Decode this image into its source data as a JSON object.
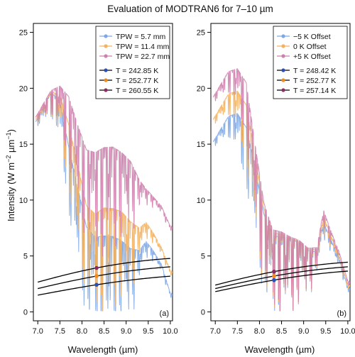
{
  "title": "Evaluation of MODTRAN6 for 7–10 µm",
  "xlabel": "Wavelength (µm)",
  "ylabel_base": "Intensity (W m",
  "ylabel_sup1": "−2",
  "ylabel_mid": " µm",
  "ylabel_sup2": "−1",
  "ylabel_end": ")",
  "chart_data": [
    {
      "type": "line",
      "panel_label": "(a)",
      "xlim": [
        6.9,
        10.05
      ],
      "ylim": [
        -0.8,
        25.8
      ],
      "xticks": [
        "7.0",
        "7.5",
        "8.0",
        "8.5",
        "9.0",
        "9.5",
        "10.0"
      ],
      "yticks": [
        "0",
        "5",
        "10",
        "15",
        "20",
        "25"
      ],
      "grid": false,
      "legend_position": "top-right",
      "legend_spectra": [
        {
          "label": "TPW = 5.7 mm",
          "color": "#7ea7e6"
        },
        {
          "label": "TPW = 11.4 mm",
          "color": "#f4b15e"
        },
        {
          "label": "TPW = 22.7 mm",
          "color": "#cf7fae"
        }
      ],
      "legend_temps": [
        {
          "label": "T =  242.85 K",
          "color": "#2c4fb5"
        },
        {
          "label": "T =  252.77 K",
          "color": "#f08a1d"
        },
        {
          "label": "T =  260.55 K",
          "color": "#8b2d63"
        }
      ],
      "spectra": [
        {
          "name": "TPW = 5.7 mm",
          "color": "#7ea7e6",
          "x": [
            6.95,
            7.1,
            7.3,
            7.5,
            7.7,
            7.9,
            8.1,
            8.3,
            8.5,
            8.7,
            8.9,
            9.1,
            9.3,
            9.45,
            9.6,
            9.8,
            10.0
          ],
          "y": [
            16.8,
            17.6,
            18.8,
            17.5,
            12.5,
            8.5,
            4.6,
            3.4,
            3.3,
            3.5,
            3.6,
            3.4,
            4.5,
            5.8,
            5.2,
            4.0,
            1.5
          ],
          "amp": [
            0.4,
            0.9,
            1.6,
            2.8,
            4.5,
            5.5,
            6.0,
            6.5,
            7.0,
            6.5,
            5.5,
            4.5,
            2.0,
            1.0,
            0.7,
            0.5,
            0.3
          ]
        },
        {
          "name": "TPW = 11.4 mm",
          "color": "#f4b15e",
          "x": [
            6.95,
            7.1,
            7.3,
            7.5,
            7.7,
            7.9,
            8.1,
            8.3,
            8.5,
            8.7,
            8.9,
            9.1,
            9.3,
            9.45,
            9.6,
            9.8,
            10.0
          ],
          "y": [
            17.0,
            17.8,
            18.9,
            18.0,
            14.5,
            10.5,
            6.5,
            5.5,
            5.8,
            6.0,
            6.2,
            5.8,
            6.5,
            7.5,
            6.8,
            5.5,
            3.5
          ],
          "amp": [
            0.4,
            0.9,
            1.6,
            2.8,
            4.5,
            5.5,
            6.0,
            6.5,
            7.0,
            6.5,
            5.5,
            4.5,
            2.0,
            1.0,
            0.7,
            0.5,
            0.3
          ]
        },
        {
          "name": "TPW = 22.7 mm",
          "color": "#cf7fae",
          "x": [
            6.95,
            7.1,
            7.3,
            7.5,
            7.7,
            7.9,
            8.1,
            8.3,
            8.5,
            8.7,
            8.9,
            9.1,
            9.3,
            9.45,
            9.6,
            9.8,
            10.0
          ],
          "y": [
            17.2,
            18.0,
            19.0,
            18.8,
            17.0,
            14.0,
            11.5,
            11.0,
            11.2,
            11.5,
            11.5,
            11.2,
            10.8,
            10.5,
            10.0,
            9.2,
            7.5
          ],
          "amp": [
            0.4,
            0.9,
            1.6,
            2.8,
            4.5,
            5.5,
            6.0,
            6.5,
            7.0,
            6.5,
            5.5,
            4.5,
            2.0,
            1.0,
            0.7,
            0.5,
            0.3
          ]
        }
      ],
      "temperatures_K": [
        242.85,
        252.77,
        260.55
      ],
      "temp_colors": [
        "#2c4fb5",
        "#f08a1d",
        "#8b2d63"
      ],
      "marker_x": 8.33
    },
    {
      "type": "line",
      "panel_label": "(b)",
      "xlim": [
        6.9,
        10.05
      ],
      "ylim": [
        -0.8,
        25.8
      ],
      "xticks": [
        "7.0",
        "7.5",
        "8.0",
        "8.5",
        "9.0",
        "9.5",
        "10.0"
      ],
      "yticks": [
        "0",
        "5",
        "10",
        "15",
        "20",
        "25"
      ],
      "grid": false,
      "legend_position": "top-right",
      "legend_spectra": [
        {
          "label": "−5 K Offset",
          "color": "#7ea7e6"
        },
        {
          "label": "0 K Offset",
          "color": "#f4b15e"
        },
        {
          "label": "+5 K Offset",
          "color": "#cf7fae"
        }
      ],
      "legend_temps": [
        {
          "label": "T =  248.42 K",
          "color": "#2c4fb5"
        },
        {
          "label": "T =  252.77 K",
          "color": "#f08a1d"
        },
        {
          "label": "T =  257.14 K",
          "color": "#8b2d63"
        }
      ],
      "spectra": [
        {
          "name": "−5 K Offset",
          "color": "#7ea7e6",
          "x": [
            6.95,
            7.1,
            7.3,
            7.5,
            7.7,
            7.9,
            8.1,
            8.3,
            8.5,
            8.7,
            8.9,
            9.1,
            9.3,
            9.45,
            9.6,
            9.8,
            10.0
          ],
          "y": [
            15.0,
            15.8,
            16.8,
            16.5,
            14.5,
            10.5,
            6.0,
            4.0,
            4.0,
            4.0,
            4.2,
            4.0,
            4.6,
            7.5,
            6.2,
            4.5,
            2.0
          ],
          "amp": [
            0.4,
            0.8,
            1.4,
            2.5,
            4.0,
            5.0,
            5.5,
            5.5,
            5.5,
            5.0,
            4.0,
            3.0,
            1.5,
            1.0,
            0.8,
            0.6,
            0.3
          ]
        },
        {
          "name": "0 K Offset",
          "color": "#f4b15e",
          "x": [
            6.95,
            7.1,
            7.3,
            7.5,
            7.7,
            7.9,
            8.1,
            8.3,
            8.5,
            8.7,
            8.9,
            9.1,
            9.3,
            9.45,
            9.6,
            9.8,
            10.0
          ],
          "y": [
            17.0,
            17.8,
            18.8,
            18.5,
            16.5,
            11.5,
            6.5,
            4.3,
            4.2,
            4.1,
            4.3,
            4.1,
            4.8,
            8.0,
            6.6,
            4.8,
            2.3
          ],
          "amp": [
            0.4,
            0.8,
            1.4,
            2.5,
            4.0,
            5.0,
            5.5,
            5.5,
            5.5,
            5.0,
            4.0,
            3.0,
            1.5,
            1.0,
            0.8,
            0.6,
            0.3
          ]
        },
        {
          "name": "+5 K Offset",
          "color": "#cf7fae",
          "x": [
            6.95,
            7.1,
            7.3,
            7.5,
            7.7,
            7.9,
            8.1,
            8.3,
            8.5,
            8.7,
            8.9,
            9.1,
            9.3,
            9.45,
            9.6,
            9.8,
            10.0
          ],
          "y": [
            19.0,
            19.8,
            20.8,
            20.5,
            18.5,
            12.5,
            7.0,
            4.6,
            4.4,
            4.2,
            4.4,
            4.2,
            5.0,
            8.6,
            7.0,
            5.1,
            2.6
          ],
          "amp": [
            0.4,
            0.8,
            1.4,
            2.5,
            4.0,
            5.0,
            5.5,
            5.5,
            5.5,
            5.0,
            4.0,
            3.0,
            1.5,
            1.0,
            0.8,
            0.6,
            0.3
          ]
        }
      ],
      "temperatures_K": [
        248.42,
        252.77,
        257.14
      ],
      "temp_colors": [
        "#2c4fb5",
        "#f08a1d",
        "#8b2d63"
      ],
      "marker_x": 8.33
    }
  ]
}
